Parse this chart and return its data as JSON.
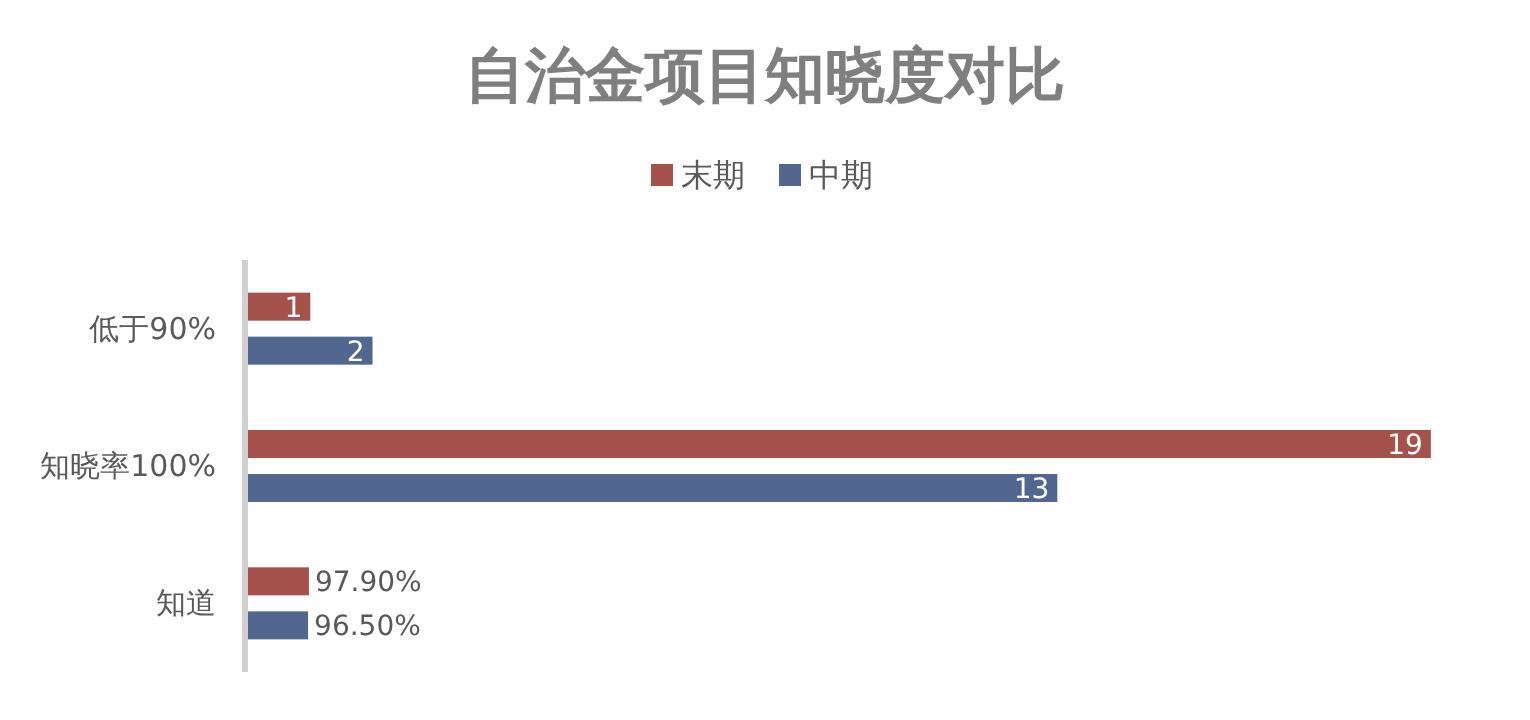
{
  "chart_data": {
    "type": "bar",
    "orientation": "horizontal",
    "title": "自治金项目知晓度对比",
    "categories": [
      "低于90%",
      "知晓率100%",
      "知道"
    ],
    "legend": "top",
    "series": [
      {
        "name": "末期",
        "color": "#a5524c",
        "values": [
          1,
          19,
          0.979
        ],
        "value_labels": [
          "1",
          "19",
          "97.90%"
        ]
      },
      {
        "name": "中期",
        "color": "#52678f",
        "values": [
          2,
          13,
          0.965
        ],
        "value_labels": [
          "2",
          "13",
          "96.50%"
        ]
      }
    ]
  }
}
